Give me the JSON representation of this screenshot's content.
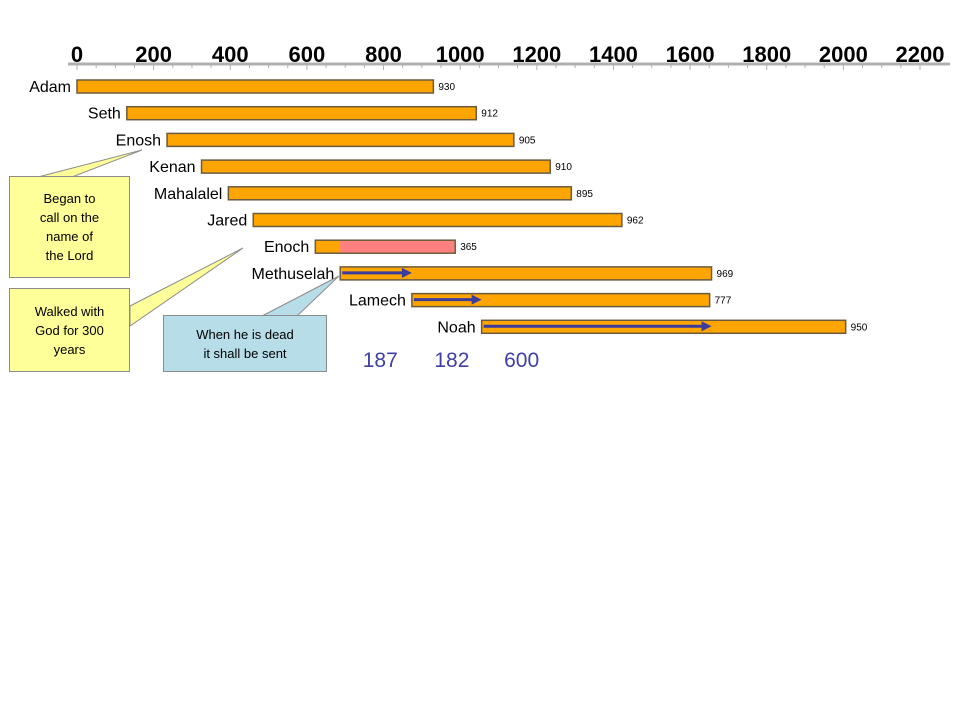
{
  "colors": {
    "bar_fill": "#ffa500",
    "bar_stroke": "#6a5a40",
    "enoch_overlay": "#ff8080",
    "arrow": "#3c3c9c",
    "number": "#3f3fa5",
    "callout_yellow": "#ffff99",
    "callout_blue": "#b7dde8"
  },
  "chart_data": {
    "type": "bar",
    "orientation": "horizontal-timeline",
    "xlim": [
      0,
      2200
    ],
    "x_ticks": [
      "0",
      "200",
      "400",
      "600",
      "800",
      "1000",
      "1200",
      "1400",
      "1600",
      "1800",
      "2000",
      "2200"
    ],
    "series": [
      {
        "label": "Adam",
        "start": 0,
        "lifespan": 930,
        "value_label": "930"
      },
      {
        "label": "Seth",
        "start": 130,
        "lifespan": 912,
        "value_label": "912"
      },
      {
        "label": "Enosh",
        "start": 235,
        "lifespan": 905,
        "value_label": "905"
      },
      {
        "label": "Kenan",
        "start": 325,
        "lifespan": 910,
        "value_label": "910"
      },
      {
        "label": "Mahalalel",
        "start": 395,
        "lifespan": 895,
        "value_label": "895"
      },
      {
        "label": "Jared",
        "start": 460,
        "lifespan": 962,
        "value_label": "962"
      },
      {
        "label": "Enoch",
        "start": 622,
        "lifespan": 365,
        "value_label": "365",
        "highlight_from": 687
      },
      {
        "label": "Methuselah",
        "start": 687,
        "lifespan": 969,
        "value_label": "969",
        "arrow_years": 187
      },
      {
        "label": "Lamech",
        "start": 874,
        "lifespan": 777,
        "value_label": "777",
        "arrow_years": 182
      },
      {
        "label": "Noah",
        "start": 1056,
        "lifespan": 950,
        "value_label": "950",
        "arrow_years": 600
      }
    ],
    "arrow_numbers": [
      "187",
      "182",
      "600"
    ]
  },
  "callouts": {
    "prayer": [
      "Began to",
      "call on the",
      "name of",
      "the Lord"
    ],
    "walk": [
      "Walked with",
      "God for 300",
      "years"
    ],
    "sent": [
      "When he is dead",
      "it shall be sent"
    ]
  }
}
